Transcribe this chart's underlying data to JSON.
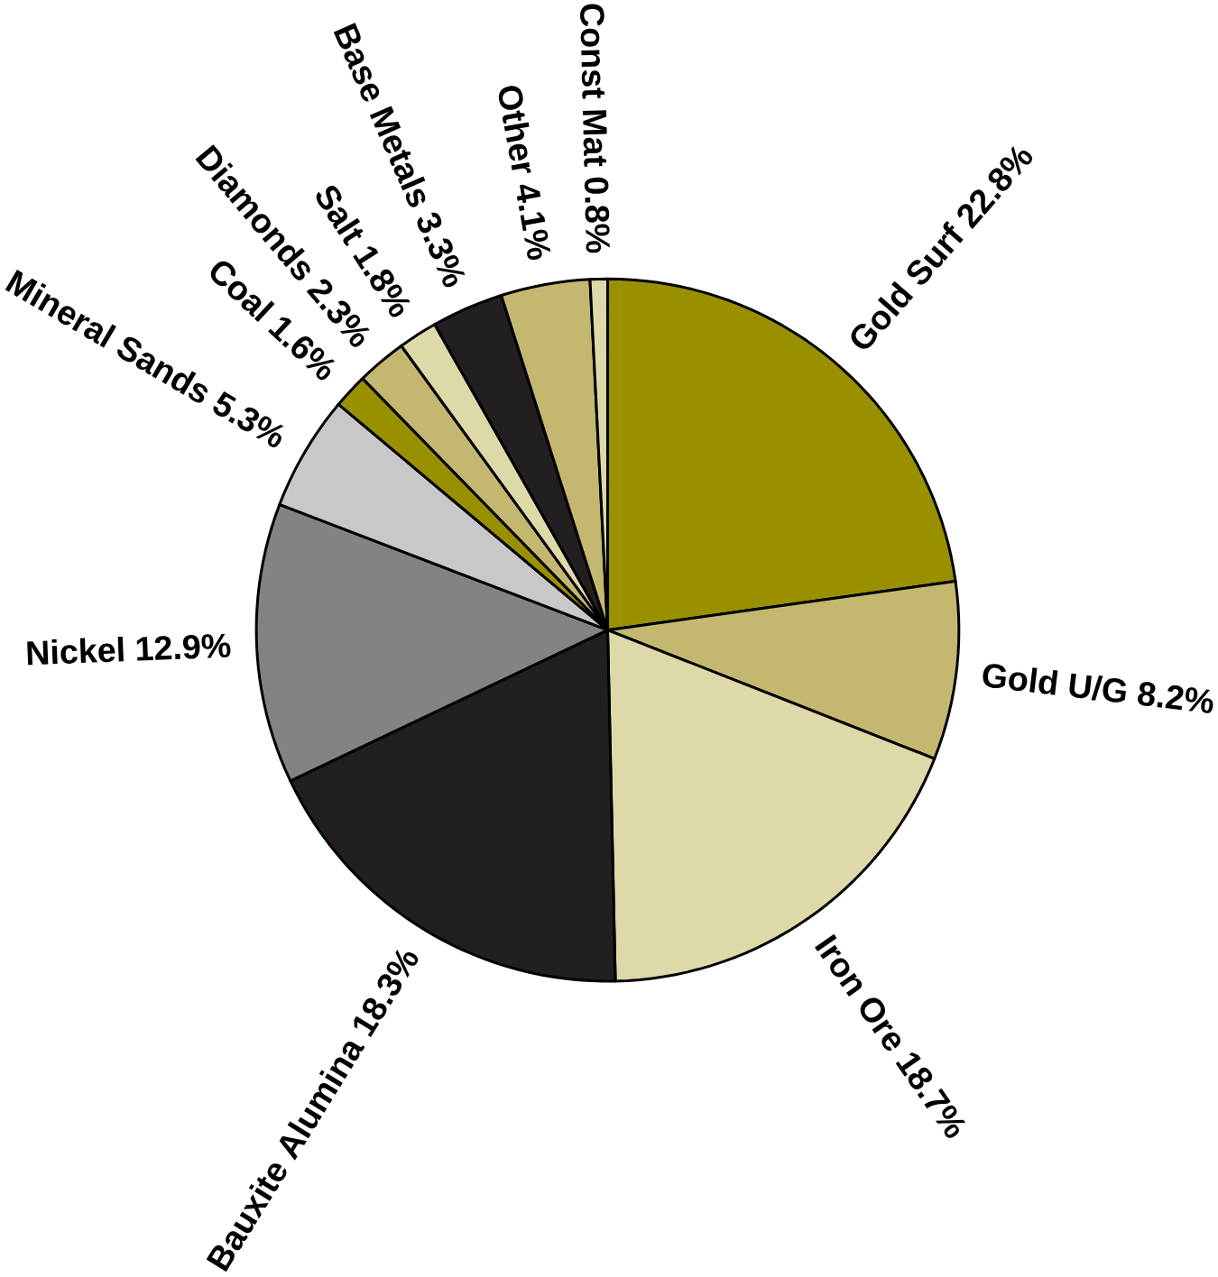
{
  "chart_data": {
    "type": "pie",
    "categories": [
      "Gold Surf 22.8%",
      "Gold U/G 8.2%",
      "Iron Ore 18.7%",
      "Bauxite Alumina 18.3%",
      "Nickel 12.9%",
      "Mineral Sands 5.3%",
      "Coal 1.6%",
      "Diamonds 2.3%",
      "Salt 1.8%",
      "Base Metals 3.3%",
      "Other 4.1%",
      "Const Mat 0.8%"
    ],
    "values": [
      22.8,
      8.2,
      18.7,
      18.3,
      12.9,
      5.3,
      1.6,
      2.3,
      1.8,
      3.3,
      4.1,
      0.8
    ],
    "colors": [
      "#999000",
      "#c4b870",
      "#ded9a8",
      "#231f20",
      "#838383",
      "#c8c8c8",
      "#999000",
      "#c4b870",
      "#ded9a8",
      "#231f20",
      "#c4b870",
      "#ded9a8"
    ]
  }
}
